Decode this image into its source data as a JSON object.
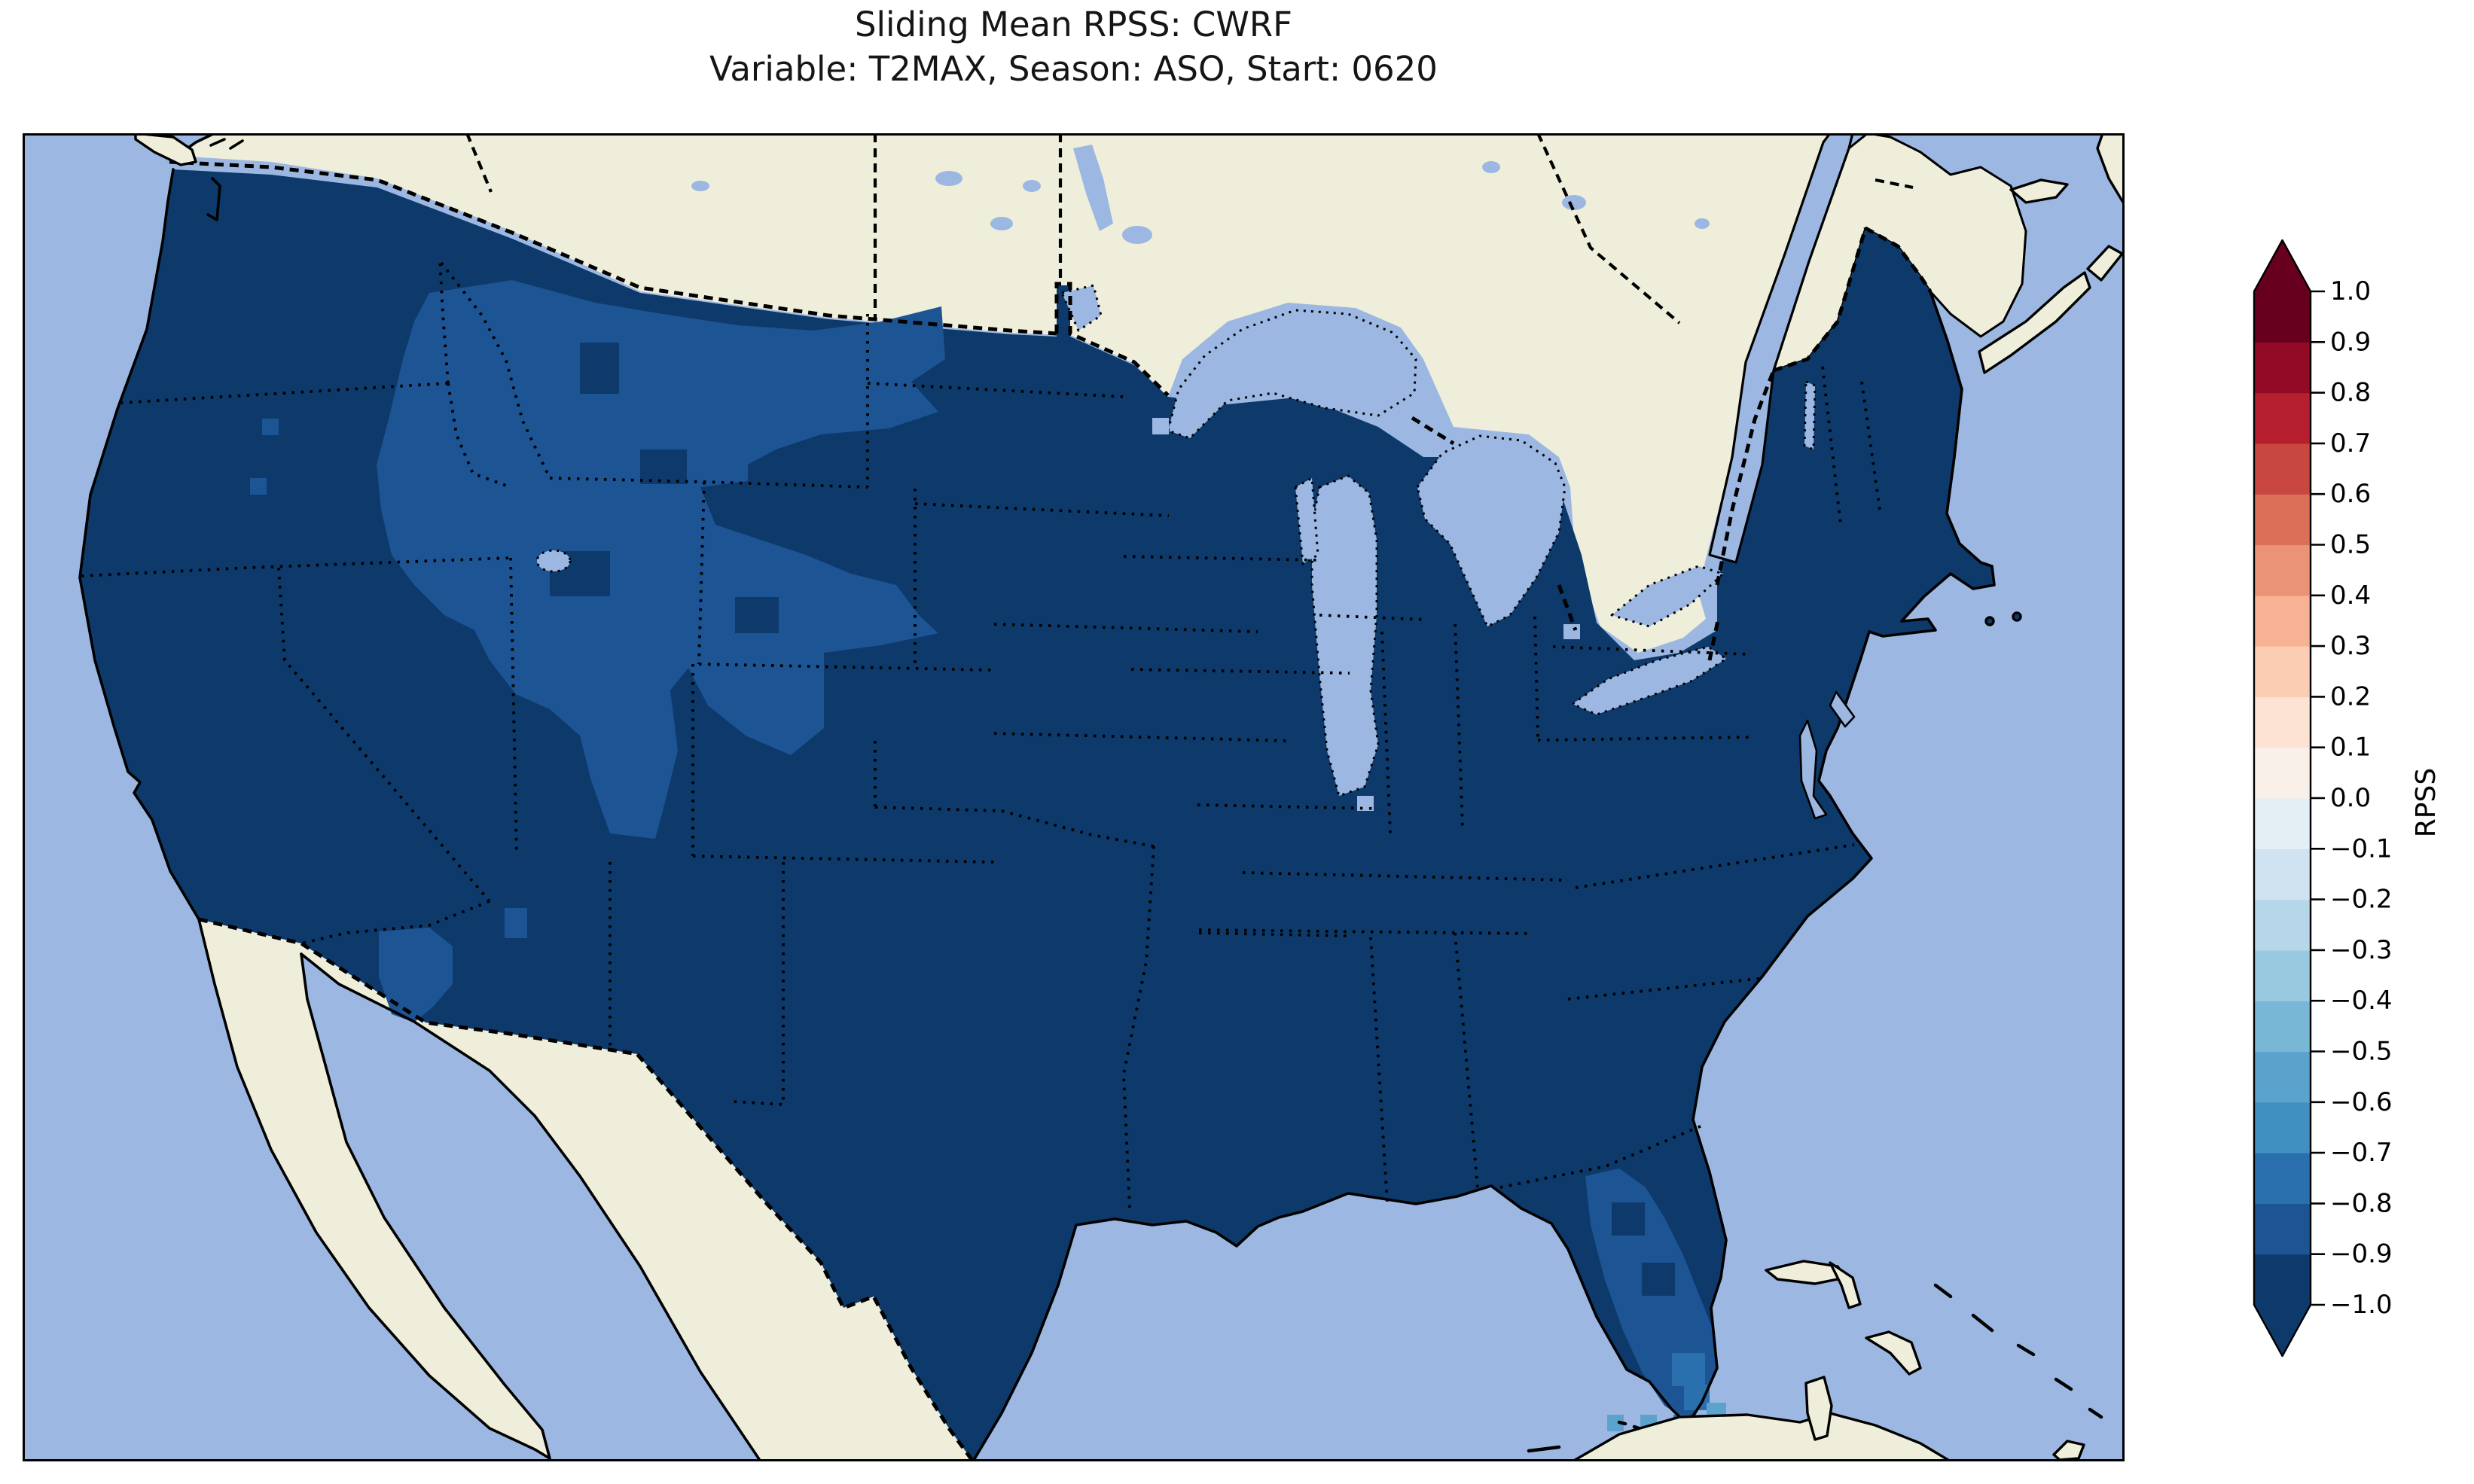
{
  "title": {
    "line1": "Sliding Mean RPSS: CWRF",
    "line2": "Variable: T2MAX, Season: ASO, Start: 0620"
  },
  "colorbar": {
    "label": "RPSS",
    "extend": "both",
    "ticks_top_to_bottom": [
      "1.0",
      "0.9",
      "0.8",
      "0.7",
      "0.6",
      "0.5",
      "0.4",
      "0.3",
      "0.2",
      "0.1",
      "0.0",
      "−0.1",
      "−0.2",
      "−0.3",
      "−0.4",
      "−0.5",
      "−0.6",
      "−0.7",
      "−0.8",
      "−0.9",
      "−1.0"
    ],
    "bin_colors_low_to_high": [
      "#0d3a6b",
      "#1d5494",
      "#2b70ae",
      "#4090c1",
      "#5ba3cc",
      "#79b7d7",
      "#99c9e1",
      "#b6d7e9",
      "#cfe3f0",
      "#e4eff5",
      "#f9f0ea",
      "#fce3d3",
      "#fbceb4",
      "#f7b194",
      "#ea9377",
      "#dc6f58",
      "#c94741",
      "#b61f2e",
      "#920a26",
      "#67001f"
    ]
  },
  "map": {
    "colors": {
      "ocean": "#9cb8e2",
      "land": "#efeeda",
      "coastline": "#000000",
      "borders": "#000000"
    }
  },
  "chart_data": {
    "type": "heatmap",
    "subtype": "geographic gridded choropleth over CONUS (cartopy-style map)",
    "title": "Sliding Mean RPSS: CWRF",
    "subtitle": "Variable: T2MAX, Season: ASO, Start: 0620",
    "colorbar_label": "RPSS",
    "value_range": [
      -1.0,
      1.0
    ],
    "bin_width": 0.1,
    "colorbar_extends_both_ends": true,
    "colormap": "RdBu_r (blue = negative, red = positive), 20 discrete bins",
    "legend_position": "right vertical colorbar",
    "observations": [
      {
        "region": "Most of the contiguous United States",
        "rpss_bin": "-1.0 to -0.9"
      },
      {
        "region": "Northern Rockies: eastern Idaho, southwest Montana, most of Wyoming",
        "rpss_bin": "-0.9 to -0.8"
      },
      {
        "region": "Utah and western Colorado patches",
        "rpss_bin": "-0.9 to -0.8"
      },
      {
        "region": "Scattered single cells in Oregon / Nevada / New Mexico",
        "rpss_bin": "-0.9 to -0.8"
      },
      {
        "region": "Southern Arizona border area",
        "rpss_bin": "-0.9 to -0.8"
      },
      {
        "region": "South Florida peninsula",
        "rpss_bin": "-0.9 to -0.7 mixed"
      },
      {
        "region": "Florida tip and Keys cells",
        "rpss_bin": "-0.7 to -0.5"
      },
      {
        "region": "Oceans, Great Lakes, Canada, Mexico, Caribbean",
        "rpss_bin": "no data (base map)"
      }
    ]
  }
}
